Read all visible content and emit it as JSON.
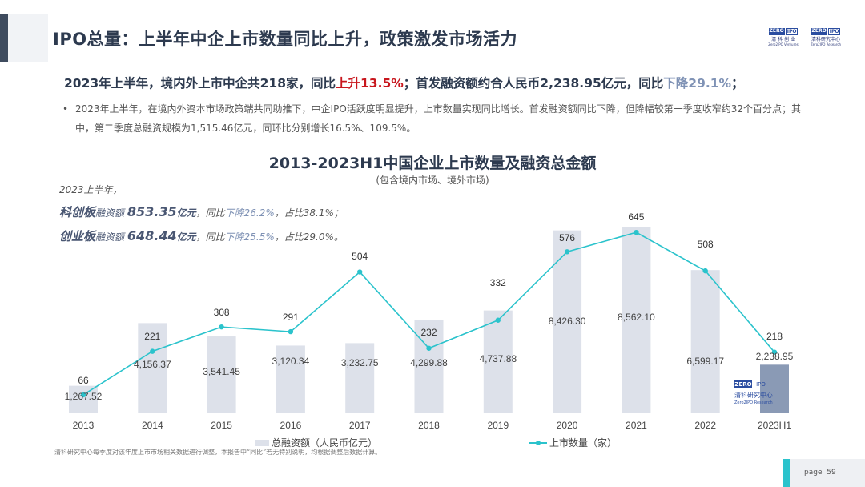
{
  "header": {
    "title": "IPO总量：上半年中企上市数量同比上升，政策激发市场活力",
    "logos": [
      {
        "top": [
          "ZERO",
          "IPO"
        ],
        "name": "清 科 创 业",
        "sub": "Zero2IPO Ventures"
      },
      {
        "top": [
          "ZERO",
          "IPO"
        ],
        "name": "清科研究中心",
        "sub": "Zero2IPO Research"
      }
    ]
  },
  "lead": {
    "p1": "2023年上半年，境内外上市中企共218家，同比",
    "up": "上升13.5%",
    "p2": "；首发融资额约合人民币2,238.95亿元，同比",
    "down": "下降29.1%",
    "p3": "；"
  },
  "bullet": "2023年上半年，在境内外资本市场政策端共同助推下，中企IPO活跃度明显提升，上市数量实现同比增长。首发融资额同比下降，但降幅较第一季度收窄约32个百分点；其中，第二季度总融资规模为1,515.46亿元，同环比分别增长16.5%、109.5%。",
  "notes": {
    "intro": "2023上半年，",
    "rows": [
      {
        "board": "科创板",
        "label": "融资额",
        "amount": "853.35",
        "unit": "亿元",
        "yoy": "，同比",
        "down": "下降26.2%",
        "share": "，占比38.1%；"
      },
      {
        "board": "创业板",
        "label": "融资额",
        "amount": "648.44",
        "unit": "亿元",
        "yoy": "，同比",
        "down": "下降25.5%",
        "share": "，占比29.0%。"
      }
    ]
  },
  "chart_data": {
    "type": "bar+line",
    "title": "2013-2023H1中国企业上市数量及融资总金额",
    "subtitle": "(包含境内市场、境外市场)",
    "categories": [
      "2013",
      "2014",
      "2015",
      "2016",
      "2017",
      "2018",
      "2019",
      "2020",
      "2021",
      "2022",
      "2023H1"
    ],
    "series": [
      {
        "name": "总融资额（人民币亿元）",
        "type": "bar",
        "values": [
          1267.52,
          4156.37,
          3541.45,
          3120.34,
          3232.75,
          4299.88,
          4737.88,
          8426.3,
          8562.1,
          6599.17,
          2238.95
        ],
        "labels": [
          "1,267.52",
          "4,156.37",
          "3,541.45",
          "3,120.34",
          "3,232.75",
          "4,299.88",
          "4,737.88",
          "8,426.30",
          "8,562.10",
          "6,599.17",
          "2,238.95"
        ],
        "ylim": [
          0,
          10000
        ]
      },
      {
        "name": "上市数量（家）",
        "type": "line",
        "values": [
          66,
          221,
          308,
          291,
          504,
          232,
          332,
          576,
          645,
          508,
          218
        ],
        "ylim": [
          0,
          774
        ]
      }
    ],
    "colors": {
      "bar": "#dde1ea",
      "bar_highlight": "#8a9ab5",
      "line": "#2bc3cc"
    },
    "watermark": {
      "top": [
        "ZERO",
        "IPO"
      ],
      "name": "清科研究中心",
      "sub": "Zero2IPO Research"
    }
  },
  "footnote": "清科研究中心每季度对该年度上市市场相关数据进行调整，本报告中“同比”若无特别说明，均根据调整后数据计算。",
  "page": {
    "label": "page",
    "number": "59"
  }
}
